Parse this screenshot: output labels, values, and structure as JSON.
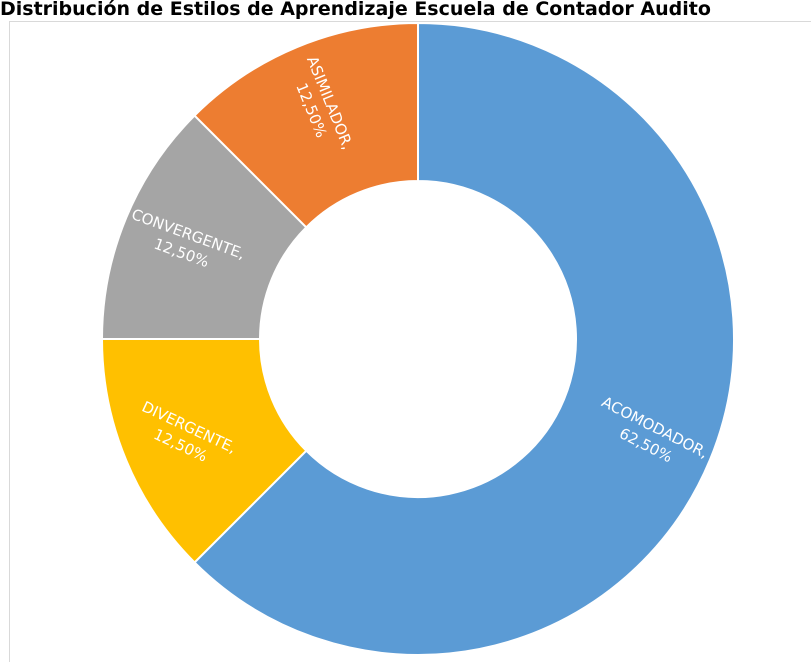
{
  "chart_data": {
    "type": "pie",
    "variant": "doughnut",
    "title": "Distribución de Estilos de Aprendizaje Escuela de Contador Audito",
    "categories": [
      "ACOMODADOR",
      "DIVERGENTE",
      "CONVERGENTE",
      "ASIMILADOR"
    ],
    "values": [
      62.5,
      12.5,
      12.5,
      12.5
    ],
    "colors": [
      "#5B9BD5",
      "#FFC000",
      "#A5A5A5",
      "#ED7D31"
    ],
    "data_labels": [
      {
        "line1": "ACOMODADOR,",
        "line2": "62,50%"
      },
      {
        "line1": "DIVERGENTE,",
        "line2": "12,50%"
      },
      {
        "line1": "CONVERGENTE,",
        "line2": "12,50%"
      },
      {
        "line1": "ASIMILADOR,",
        "line2": "12,50%"
      }
    ],
    "legend": "none",
    "start_angle_deg": 0,
    "direction": "clockwise"
  }
}
